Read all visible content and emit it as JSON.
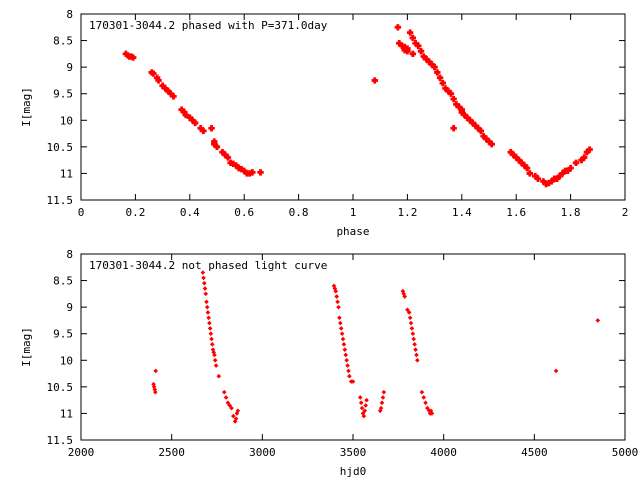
{
  "chart_data": [
    {
      "type": "scatter",
      "title": "170301-3044.2 phased with P=371.0day",
      "xlabel": "phase",
      "ylabel": "I[mag]",
      "xlim": [
        0,
        2
      ],
      "ylim": [
        11.5,
        8
      ],
      "y_inverted": true,
      "grid": false,
      "xticks": [
        0,
        0.2,
        0.4,
        0.6,
        0.8,
        1,
        1.2,
        1.4,
        1.6,
        1.8,
        2
      ],
      "xtick_labels": [
        "0",
        "0.2",
        "0.4",
        "0.6",
        "0.8",
        "1",
        "1.2",
        "1.4",
        "1.6",
        "1.8",
        "2"
      ],
      "yticks": [
        8,
        8.5,
        9,
        9.5,
        10,
        10.5,
        11,
        11.5
      ],
      "ytick_labels": [
        "8",
        "8.5",
        "9",
        "9.5",
        "10",
        "10.5",
        "11",
        "11.5"
      ],
      "marker": "cross",
      "color": "#ff0000",
      "series": [
        {
          "x": [
            0.165,
            0.172,
            0.178,
            0.185,
            0.192,
            0.26,
            0.266,
            0.28,
            0.285,
            0.3,
            0.31,
            0.32,
            0.33,
            0.34,
            0.37,
            0.38,
            0.385,
            0.4,
            0.41,
            0.42,
            0.44,
            0.45,
            0.48,
            0.49,
            0.49,
            0.5,
            0.52,
            0.53,
            0.54,
            0.55,
            0.56,
            0.57,
            0.58,
            0.59,
            0.6,
            0.61,
            0.62,
            0.63,
            0.66,
            1.08,
            1.165,
            1.17,
            1.18,
            1.19,
            1.2,
            1.19,
            1.2,
            1.21,
            1.22,
            1.23,
            1.24,
            1.25,
            1.22,
            1.26,
            1.27,
            1.28,
            1.29,
            1.3,
            1.31,
            1.32,
            1.33,
            1.34,
            1.35,
            1.36,
            1.37,
            1.38,
            1.39,
            1.4,
            1.4,
            1.41,
            1.42,
            1.43,
            1.44,
            1.45,
            1.46,
            1.47,
            1.48,
            1.49,
            1.5,
            1.51,
            1.37,
            1.58,
            1.59,
            1.6,
            1.61,
            1.62,
            1.63,
            1.64,
            1.65,
            1.67,
            1.68,
            1.7,
            1.71,
            1.72,
            1.73,
            1.74,
            1.75,
            1.76,
            1.77,
            1.78,
            1.79,
            1.8,
            1.82,
            1.84,
            1.85,
            1.86,
            1.87
          ],
          "y": [
            8.75,
            8.78,
            8.8,
            8.8,
            8.82,
            9.1,
            9.12,
            9.2,
            9.25,
            9.35,
            9.4,
            9.45,
            9.5,
            9.55,
            9.8,
            9.85,
            9.9,
            9.95,
            10.0,
            10.05,
            10.15,
            10.2,
            10.15,
            10.4,
            10.45,
            10.5,
            10.6,
            10.65,
            10.7,
            10.8,
            10.82,
            10.85,
            10.9,
            10.92,
            10.95,
            11.0,
            11.0,
            10.98,
            10.98,
            9.25,
            8.25,
            8.55,
            8.6,
            8.62,
            8.65,
            8.68,
            8.7,
            8.35,
            8.45,
            8.55,
            8.6,
            8.7,
            8.75,
            8.8,
            8.85,
            8.9,
            8.95,
            9.0,
            9.1,
            9.2,
            9.3,
            9.4,
            9.45,
            9.5,
            9.6,
            9.7,
            9.75,
            9.8,
            9.85,
            9.9,
            9.95,
            10.0,
            10.05,
            10.1,
            10.15,
            10.2,
            10.3,
            10.35,
            10.4,
            10.45,
            10.15,
            10.6,
            10.65,
            10.7,
            10.75,
            10.8,
            10.85,
            10.9,
            11.0,
            11.05,
            11.1,
            11.15,
            11.2,
            11.18,
            11.15,
            11.1,
            11.1,
            11.05,
            11.0,
            10.95,
            10.95,
            10.9,
            10.8,
            10.75,
            10.7,
            10.6,
            10.55
          ]
        }
      ]
    },
    {
      "type": "scatter",
      "title": "170301-3044.2 not phased light curve",
      "xlabel": "hjd0",
      "ylabel": "I[mag]",
      "xlim": [
        2000,
        5000
      ],
      "ylim": [
        11.5,
        8
      ],
      "y_inverted": true,
      "grid": false,
      "xticks": [
        2000,
        2500,
        3000,
        3500,
        4000,
        4500,
        5000
      ],
      "xtick_labels": [
        "2000",
        "2500",
        "3000",
        "3500",
        "4000",
        "4500",
        "5000"
      ],
      "yticks": [
        8,
        8.5,
        9,
        9.5,
        10,
        10.5,
        11,
        11.5
      ],
      "ytick_labels": [
        "8",
        "8.5",
        "9",
        "9.5",
        "10",
        "10.5",
        "11",
        "11.5"
      ],
      "marker": "diamond",
      "color": "#ff0000",
      "series": [
        {
          "x": [
            2400,
            2403,
            2407,
            2410,
            2412,
            2672,
            2676,
            2680,
            2684,
            2688,
            2692,
            2696,
            2700,
            2704,
            2708,
            2712,
            2716,
            2720,
            2724,
            2728,
            2732,
            2736,
            2740,
            2745,
            2760,
            2790,
            2800,
            2810,
            2820,
            2830,
            2840,
            2850,
            2855,
            2860,
            2865,
            3395,
            3400,
            3405,
            3410,
            3415,
            3420,
            3425,
            3430,
            3435,
            3440,
            3445,
            3450,
            3455,
            3460,
            3465,
            3470,
            3475,
            3480,
            3490,
            3500,
            3540,
            3545,
            3550,
            3555,
            3560,
            3565,
            3570,
            3575,
            3650,
            3655,
            3660,
            3665,
            3670,
            3775,
            3780,
            3785,
            3800,
            3810,
            3815,
            3820,
            3825,
            3830,
            3835,
            3840,
            3845,
            3850,
            3855,
            3880,
            3890,
            3900,
            3910,
            3920,
            3925,
            3930,
            3935,
            4620,
            4850
          ],
          "y": [
            10.45,
            10.5,
            10.55,
            10.6,
            10.2,
            8.35,
            8.45,
            8.55,
            8.65,
            8.75,
            8.9,
            9.0,
            9.1,
            9.2,
            9.3,
            9.4,
            9.5,
            9.6,
            9.7,
            9.8,
            9.85,
            9.9,
            10.0,
            10.1,
            10.3,
            10.6,
            10.7,
            10.8,
            10.85,
            10.9,
            11.05,
            11.15,
            11.1,
            11.0,
            10.95,
            8.6,
            8.65,
            8.7,
            8.8,
            8.9,
            9.0,
            9.2,
            9.3,
            9.4,
            9.5,
            9.6,
            9.7,
            9.8,
            9.9,
            10.0,
            10.1,
            10.2,
            10.3,
            10.4,
            10.4,
            10.7,
            10.8,
            10.9,
            11.0,
            11.05,
            10.95,
            10.85,
            10.75,
            10.95,
            10.9,
            10.8,
            10.7,
            10.6,
            8.7,
            8.75,
            8.8,
            9.05,
            9.1,
            9.2,
            9.3,
            9.4,
            9.5,
            9.6,
            9.7,
            9.8,
            9.9,
            10.0,
            10.6,
            10.7,
            10.8,
            10.9,
            10.95,
            11.0,
            10.95,
            11.0,
            10.2,
            9.25
          ]
        }
      ]
    }
  ]
}
